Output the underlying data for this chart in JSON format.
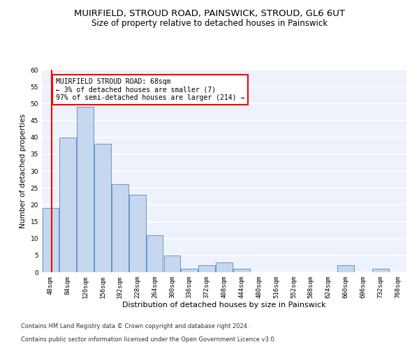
{
  "title": "MUIRFIELD, STROUD ROAD, PAINSWICK, STROUD, GL6 6UT",
  "subtitle": "Size of property relative to detached houses in Painswick",
  "xlabel": "Distribution of detached houses by size in Painswick",
  "ylabel": "Number of detached properties",
  "bins": [
    48,
    84,
    120,
    156,
    192,
    228,
    264,
    300,
    336,
    372,
    408,
    444,
    480,
    516,
    552,
    588,
    624,
    660,
    696,
    732,
    768
  ],
  "values": [
    19,
    40,
    49,
    38,
    26,
    23,
    11,
    5,
    1,
    2,
    3,
    1,
    0,
    0,
    0,
    0,
    0,
    2,
    0,
    1,
    0
  ],
  "bar_color": "#c5d8f0",
  "bar_edge_color": "#5588bb",
  "property_size": 68,
  "annotation_line1": "MUIRFIELD STROUD ROAD: 68sqm",
  "annotation_line2": "← 3% of detached houses are smaller (7)",
  "annotation_line3": "97% of semi-detached houses are larger (214) →",
  "annotation_box_color": "white",
  "annotation_box_edge_color": "red",
  "vline_color": "red",
  "ylim": [
    0,
    60
  ],
  "yticks": [
    0,
    5,
    10,
    15,
    20,
    25,
    30,
    35,
    40,
    45,
    50,
    55,
    60
  ],
  "footnote_line1": "Contains HM Land Registry data © Crown copyright and database right 2024.",
  "footnote_line2": "Contains public sector information licensed under the Open Government Licence v3.0.",
  "bg_color": "#eef2fa",
  "grid_color": "#ffffff",
  "title_fontsize": 9.5,
  "subtitle_fontsize": 8.5,
  "ylabel_fontsize": 7.5,
  "xlabel_fontsize": 8,
  "tick_fontsize": 6.5,
  "annotation_fontsize": 7,
  "footnote_fontsize": 6
}
